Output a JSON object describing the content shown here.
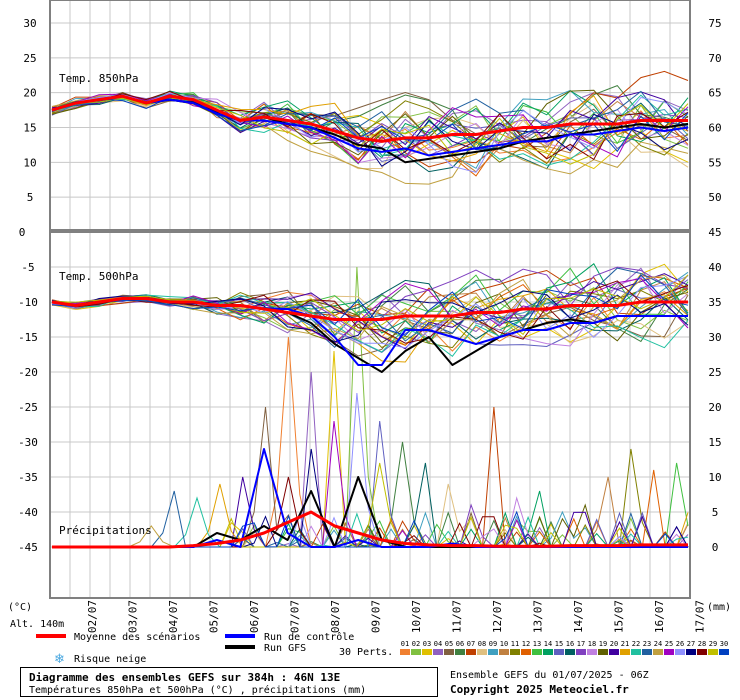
{
  "footer": {
    "title": "Diagramme des ensembles GEFS sur 384h : 46N 13E",
    "subtitle": "Températures 850hPa et 500hPa (°C) , précipitations (mm)",
    "run": "Ensemble GEFS du 01/07/2025 - 06Z",
    "copyright": "Copyright 2025 Meteociel.fr"
  },
  "labels": {
    "unit_left": "(°C)",
    "unit_right": "(mm)",
    "altitude": "Alt. 140m",
    "perts": "30 Perts."
  },
  "legend": {
    "mean": "Moyenne des scénarios",
    "control": "Run de contrôle",
    "gfs": "Run GFS",
    "snow": "Risque neige",
    "colors": {
      "mean": "#ff0000",
      "control": "#0000ff",
      "gfs": "#000000",
      "snow": "#4aa8e0"
    }
  },
  "members": {
    "labels": [
      "01",
      "02",
      "03",
      "04",
      "05",
      "06",
      "07",
      "08",
      "09",
      "10",
      "11",
      "12",
      "13",
      "14",
      "15",
      "16",
      "17",
      "18",
      "19",
      "20",
      "21",
      "22",
      "23",
      "24",
      "25",
      "26",
      "27",
      "28",
      "29",
      "30"
    ],
    "colors": [
      "#f08030",
      "#80c040",
      "#e0c000",
      "#9060c0",
      "#806040",
      "#408040",
      "#c04000",
      "#e0c080",
      "#40a0c0",
      "#c08040",
      "#808000",
      "#e06000",
      "#40c040",
      "#00a060",
      "#6060c0",
      "#006060",
      "#8040c0",
      "#c080e0",
      "#606000",
      "#4000a0",
      "#e0a000",
      "#20c0a0",
      "#2060a0",
      "#c0a040",
      "#a000c0",
      "#9090ff",
      "#000080",
      "#800000",
      "#c0c000",
      "#0040c0"
    ]
  },
  "chart_data": [
    {
      "type": "line",
      "title": "Temp. 850hPa",
      "x_tick_labels": [
        "02/07",
        "03/07",
        "04/07",
        "05/07",
        "06/07",
        "07/07",
        "08/07",
        "09/07",
        "10/07",
        "11/07",
        "12/07",
        "13/07",
        "14/07",
        "15/07",
        "16/07",
        "17/07"
      ],
      "y_left_ticks": [
        5,
        10,
        15,
        20,
        25,
        30
      ],
      "y_right_ticks": [
        50,
        55,
        60,
        65,
        70,
        75
      ],
      "ylim": [
        0,
        33
      ],
      "grid": true,
      "mean": [
        17.5,
        18.5,
        19,
        19.5,
        18.5,
        19.5,
        19,
        17.5,
        16,
        16.5,
        16,
        15.5,
        14.5,
        13.5,
        13,
        13.5,
        13.5,
        14,
        14,
        14.5,
        15,
        15,
        15.5,
        15.5,
        15.5,
        16,
        16,
        16
      ],
      "control": [
        17.5,
        18.5,
        19,
        19.5,
        18.5,
        19,
        18.5,
        17,
        16,
        16,
        15.5,
        15,
        13.5,
        12,
        11.5,
        12,
        11,
        11.5,
        12,
        12.5,
        13,
        13,
        14,
        14,
        14.5,
        15,
        14.5,
        15
      ],
      "gfs": [
        17.5,
        18.5,
        19,
        19.5,
        18.5,
        19,
        18.5,
        17,
        16,
        16.5,
        15.5,
        15,
        14,
        12.5,
        12,
        10,
        10.5,
        11,
        11.5,
        12,
        13,
        13.5,
        14,
        14.5,
        15,
        15.5,
        15,
        15.5
      ]
    },
    {
      "type": "line",
      "title": "Temp. 500hPa",
      "y_left_ticks": [
        -5,
        -10,
        -15,
        -20,
        -25,
        -30,
        -35,
        -40,
        -45
      ],
      "ylim": [
        -48,
        0
      ],
      "grid": true,
      "mean": [
        -10,
        -10.5,
        -10,
        -9.5,
        -9.5,
        -10,
        -10,
        -10.5,
        -10.5,
        -11,
        -11.5,
        -12,
        -12.5,
        -12.5,
        -12.5,
        -12,
        -12,
        -12,
        -11.5,
        -11.5,
        -11,
        -11,
        -10.5,
        -10.5,
        -10.5,
        -10,
        -10,
        -10
      ],
      "control": [
        -10,
        -10.5,
        -10,
        -9.5,
        -9.5,
        -10,
        -10,
        -10.5,
        -10.5,
        -11,
        -11,
        -12,
        -15,
        -19,
        -19,
        -14,
        -14,
        -15,
        -16,
        -15,
        -14,
        -14,
        -13,
        -13,
        -12,
        -12,
        -12,
        -12
      ],
      "gfs": [
        -10,
        -10.5,
        -10,
        -9.5,
        -9.5,
        -10,
        -10,
        -10.5,
        -10.5,
        -11,
        -11.5,
        -13,
        -16,
        -18,
        -20,
        -17,
        -15,
        -19,
        -17,
        -15,
        -14,
        -13,
        -12.5,
        -13,
        -12,
        -12,
        -12,
        -12
      ]
    },
    {
      "type": "line",
      "title": "Précipitations",
      "y_right_ticks": [
        0,
        5,
        10,
        15,
        20,
        25,
        30,
        35,
        40,
        45
      ],
      "ylim": [
        0,
        45
      ],
      "mean": [
        0,
        0,
        0,
        0,
        0,
        0,
        0.2,
        0.5,
        1,
        2,
        3.5,
        5,
        3,
        2,
        1,
        0.5,
        0.3,
        0.2,
        0.2,
        0.1,
        0.1,
        0.1,
        0.2,
        0.2,
        0.2,
        0.3,
        0.3,
        0.3
      ],
      "control": [
        0,
        0,
        0,
        0,
        0,
        0,
        0,
        1,
        0,
        14,
        2,
        0,
        0,
        1,
        0,
        0,
        0,
        0.5,
        0,
        0,
        0,
        0,
        0,
        0,
        0,
        0,
        0,
        0
      ],
      "gfs": [
        0,
        0,
        0,
        0,
        0,
        0,
        0,
        2,
        1,
        3,
        1,
        8,
        0,
        10,
        1,
        0,
        0,
        0,
        0,
        0,
        0,
        0,
        0,
        0,
        0,
        0,
        0,
        0
      ],
      "member_peaks": [
        [
          10,
          30
        ],
        [
          13,
          40
        ],
        [
          12,
          28
        ],
        [
          11,
          25
        ],
        [
          9,
          20
        ],
        [
          15,
          15
        ],
        [
          19,
          20
        ],
        [
          17,
          9
        ],
        [
          22,
          5
        ],
        [
          24,
          10
        ],
        [
          25,
          14
        ],
        [
          26,
          11
        ],
        [
          27,
          12
        ],
        [
          21,
          8
        ],
        [
          14,
          18
        ],
        [
          16,
          12
        ],
        [
          18,
          6
        ],
        [
          20,
          7
        ],
        [
          23,
          6
        ],
        [
          8,
          10
        ],
        [
          7,
          9
        ],
        [
          6,
          7
        ],
        [
          5,
          8
        ],
        [
          4,
          3
        ],
        [
          12,
          18
        ],
        [
          13,
          22
        ],
        [
          11,
          14
        ],
        [
          10,
          10
        ],
        [
          14,
          12
        ],
        [
          20,
          5
        ]
      ]
    }
  ]
}
